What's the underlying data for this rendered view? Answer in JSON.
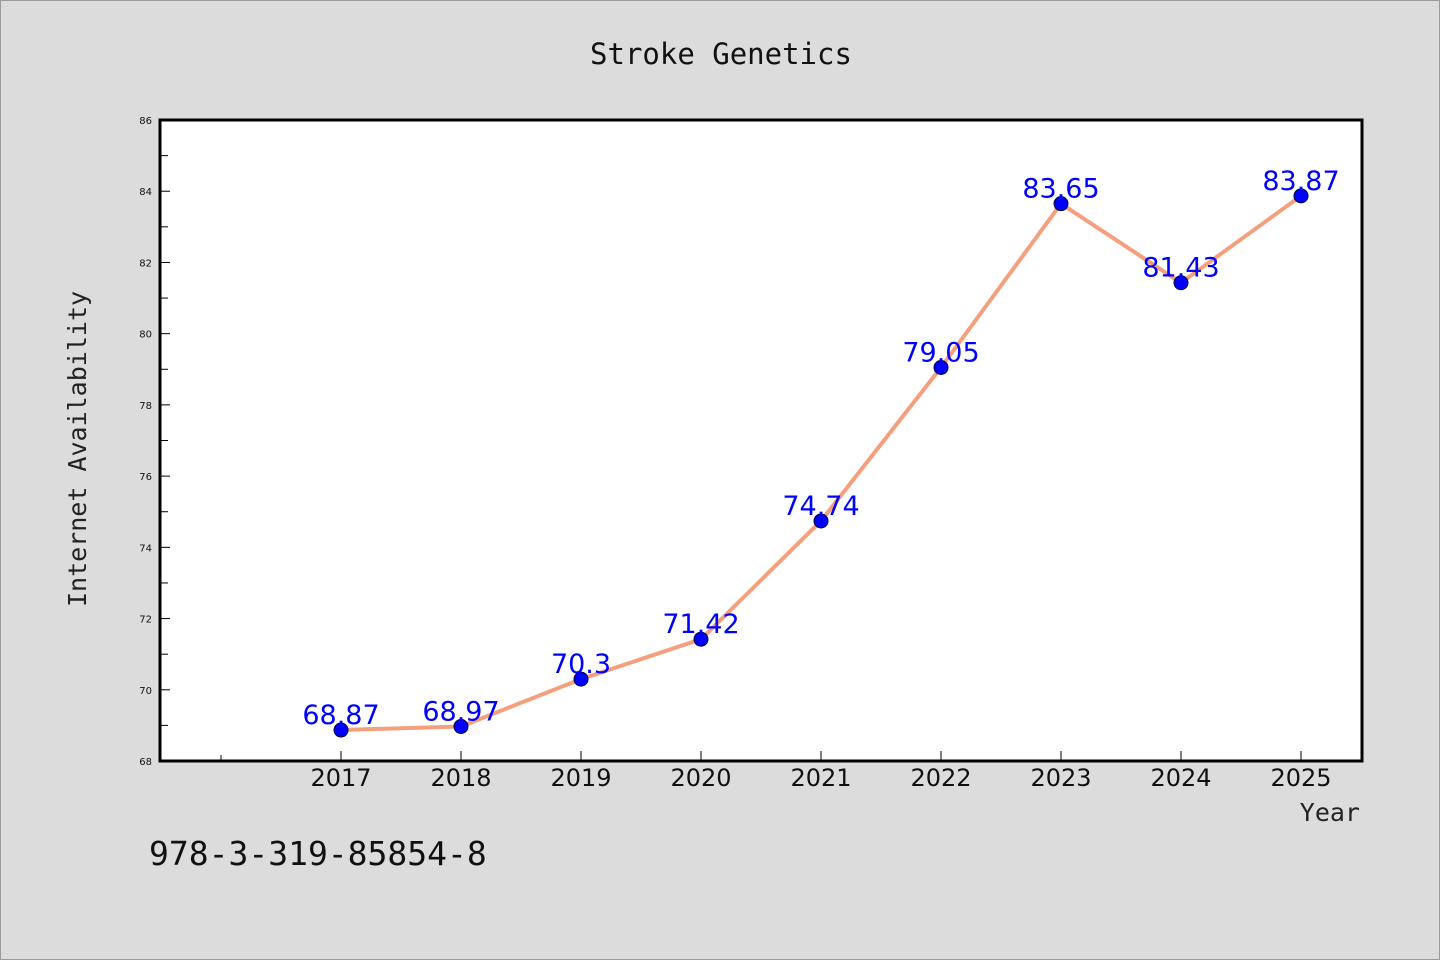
{
  "footnote": "978-3-319-85854-8",
  "colors": {
    "background": "#dcdcdc",
    "plot_background": "#ffffff",
    "line": "#f4a07e",
    "marker": "#0000ff",
    "data_label": "#0000ff"
  },
  "chart_data": {
    "type": "line",
    "title": "Stroke Genetics",
    "xlabel": "Year",
    "ylabel": "Internet Availability",
    "categories": [
      "2017",
      "2018",
      "2019",
      "2020",
      "2021",
      "2022",
      "2023",
      "2024",
      "2025"
    ],
    "series": [
      {
        "values": [
          68.87,
          68.97,
          70.3,
          71.42,
          74.74,
          79.05,
          83.65,
          81.43,
          83.87
        ],
        "labels": [
          "68.87",
          "68.97",
          "70.3",
          "71.42",
          "74.74",
          "79.05",
          "83.65",
          "81.43",
          "83.87"
        ]
      }
    ],
    "ylim": [
      68,
      86
    ],
    "yticks": [
      "68",
      "70",
      "72",
      "74",
      "76",
      "78",
      "80",
      "82",
      "84",
      "86"
    ],
    "grid": false,
    "legend": "none"
  }
}
